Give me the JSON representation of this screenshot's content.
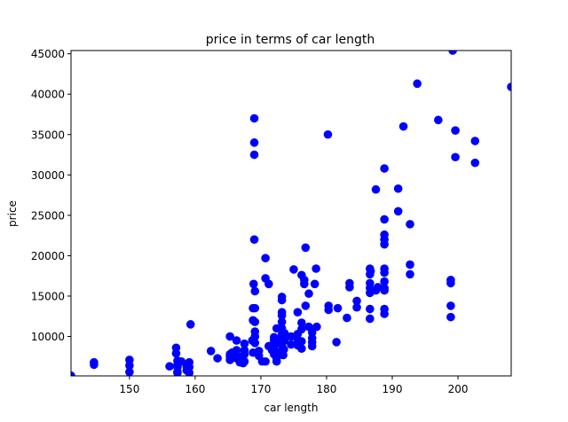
{
  "chart_data": {
    "type": "scatter",
    "title": "price in terms of car length",
    "xlabel": "car length",
    "ylabel": "price",
    "xlim": [
      141.1,
      208.1
    ],
    "ylim": [
      5118,
      45400
    ],
    "xticks": [
      150,
      160,
      170,
      180,
      190,
      200
    ],
    "yticks": [
      10000,
      15000,
      20000,
      25000,
      30000,
      35000,
      40000,
      45000
    ],
    "xtick_labels": [
      "150",
      "160",
      "170",
      "180",
      "190",
      "200"
    ],
    "ytick_labels": [
      "10000",
      "15000",
      "20000",
      "25000",
      "30000",
      "35000",
      "40000",
      "45000"
    ],
    "grid": false,
    "marker_color": "#0000ff",
    "points": [
      [
        141.1,
        5150
      ],
      [
        144.6,
        6800
      ],
      [
        144.6,
        6500
      ],
      [
        150.0,
        7100
      ],
      [
        150.0,
        6400
      ],
      [
        150.0,
        5600
      ],
      [
        156.1,
        6300
      ],
      [
        157.1,
        8600
      ],
      [
        157.1,
        7900
      ],
      [
        157.3,
        7000
      ],
      [
        157.3,
        6500
      ],
      [
        157.3,
        6200
      ],
      [
        157.3,
        5600
      ],
      [
        157.3,
        5500
      ],
      [
        157.9,
        6900
      ],
      [
        158.7,
        6300
      ],
      [
        158.7,
        5800
      ],
      [
        158.8,
        6300
      ],
      [
        159.1,
        6800
      ],
      [
        159.1,
        6200
      ],
      [
        159.1,
        5500
      ],
      [
        159.3,
        11500
      ],
      [
        162.4,
        8200
      ],
      [
        163.4,
        7300
      ],
      [
        165.3,
        10000
      ],
      [
        165.3,
        7800
      ],
      [
        165.3,
        7500
      ],
      [
        165.3,
        7100
      ],
      [
        165.6,
        8000
      ],
      [
        166.3,
        9500
      ],
      [
        166.3,
        8300
      ],
      [
        166.3,
        7700
      ],
      [
        166.3,
        7300
      ],
      [
        166.8,
        7000
      ],
      [
        166.8,
        6800
      ],
      [
        167.3,
        7600
      ],
      [
        167.3,
        7100
      ],
      [
        167.3,
        6700
      ],
      [
        167.5,
        9100
      ],
      [
        167.5,
        8300
      ],
      [
        167.5,
        7800
      ],
      [
        167.5,
        6900
      ],
      [
        168.7,
        9500
      ],
      [
        168.8,
        13500
      ],
      [
        168.8,
        12000
      ],
      [
        168.8,
        8000
      ],
      [
        168.9,
        16500
      ],
      [
        169.0,
        37000
      ],
      [
        169.0,
        34000
      ],
      [
        169.0,
        32500
      ],
      [
        169.0,
        22000
      ],
      [
        169.1,
        15600
      ],
      [
        169.1,
        13500
      ],
      [
        169.1,
        11800
      ],
      [
        169.1,
        10600
      ],
      [
        169.1,
        10000
      ],
      [
        169.1,
        9200
      ],
      [
        169.7,
        8200
      ],
      [
        169.7,
        7600
      ],
      [
        170.2,
        6900
      ],
      [
        170.7,
        19700
      ],
      [
        170.7,
        17200
      ],
      [
        170.7,
        6900
      ],
      [
        171.2,
        16500
      ],
      [
        171.2,
        8800
      ],
      [
        171.7,
        8300
      ],
      [
        172.0,
        9900
      ],
      [
        172.0,
        9500
      ],
      [
        172.0,
        9000
      ],
      [
        172.0,
        8600
      ],
      [
        172.0,
        7800
      ],
      [
        172.4,
        11000
      ],
      [
        172.4,
        9200
      ],
      [
        172.4,
        8000
      ],
      [
        172.4,
        7300
      ],
      [
        172.4,
        6900
      ],
      [
        173.2,
        14900
      ],
      [
        173.2,
        14500
      ],
      [
        173.2,
        13000
      ],
      [
        173.2,
        12600
      ],
      [
        173.2,
        11800
      ],
      [
        173.2,
        11000
      ],
      [
        173.2,
        10200
      ],
      [
        173.2,
        9600
      ],
      [
        173.2,
        9000
      ],
      [
        173.2,
        8300
      ],
      [
        173.2,
        7800
      ],
      [
        173.4,
        7700
      ],
      [
        173.5,
        8400
      ],
      [
        173.6,
        10400
      ],
      [
        173.6,
        9500
      ],
      [
        174.6,
        10000
      ],
      [
        174.6,
        9000
      ],
      [
        175.0,
        18300
      ],
      [
        175.6,
        13000
      ],
      [
        175.6,
        10300
      ],
      [
        175.6,
        9600
      ],
      [
        175.6,
        8900
      ],
      [
        176.2,
        17600
      ],
      [
        176.2,
        11700
      ],
      [
        176.2,
        10900
      ],
      [
        176.2,
        9400
      ],
      [
        176.2,
        8500
      ],
      [
        176.6,
        17000
      ],
      [
        176.6,
        16500
      ],
      [
        176.8,
        21000
      ],
      [
        176.8,
        13800
      ],
      [
        177.3,
        15300
      ],
      [
        177.3,
        11200
      ],
      [
        177.8,
        10500
      ],
      [
        177.8,
        9800
      ],
      [
        177.8,
        9300
      ],
      [
        177.8,
        8800
      ],
      [
        178.2,
        16500
      ],
      [
        178.4,
        18400
      ],
      [
        178.5,
        11200
      ],
      [
        180.2,
        35000
      ],
      [
        180.3,
        13800
      ],
      [
        180.3,
        13300
      ],
      [
        181.5,
        9300
      ],
      [
        181.7,
        13500
      ],
      [
        183.1,
        12300
      ],
      [
        183.5,
        16600
      ],
      [
        183.5,
        16100
      ],
      [
        184.6,
        14400
      ],
      [
        184.6,
        13600
      ],
      [
        186.6,
        18400
      ],
      [
        186.6,
        17700
      ],
      [
        186.6,
        16600
      ],
      [
        186.6,
        16000
      ],
      [
        186.6,
        15400
      ],
      [
        186.6,
        13400
      ],
      [
        186.6,
        12200
      ],
      [
        186.7,
        18100
      ],
      [
        187.5,
        28200
      ],
      [
        187.5,
        15700
      ],
      [
        187.8,
        16100
      ],
      [
        188.8,
        30800
      ],
      [
        188.8,
        24500
      ],
      [
        188.8,
        22600
      ],
      [
        188.8,
        22000
      ],
      [
        188.8,
        21400
      ],
      [
        188.8,
        18400
      ],
      [
        188.8,
        17900
      ],
      [
        188.8,
        16800
      ],
      [
        188.8,
        16000
      ],
      [
        188.8,
        15700
      ],
      [
        188.8,
        13400
      ],
      [
        188.8,
        12800
      ],
      [
        190.9,
        28300
      ],
      [
        190.9,
        25500
      ],
      [
        191.7,
        36000
      ],
      [
        192.7,
        23900
      ],
      [
        192.7,
        18900
      ],
      [
        192.7,
        17700
      ],
      [
        193.8,
        41300
      ],
      [
        197.0,
        36800
      ],
      [
        198.9,
        17000
      ],
      [
        198.9,
        16600
      ],
      [
        198.9,
        13800
      ],
      [
        198.9,
        12400
      ],
      [
        199.2,
        45400
      ],
      [
        199.6,
        35500
      ],
      [
        199.6,
        32200
      ],
      [
        202.6,
        34200
      ],
      [
        202.6,
        31500
      ],
      [
        208.1,
        40900
      ]
    ]
  }
}
